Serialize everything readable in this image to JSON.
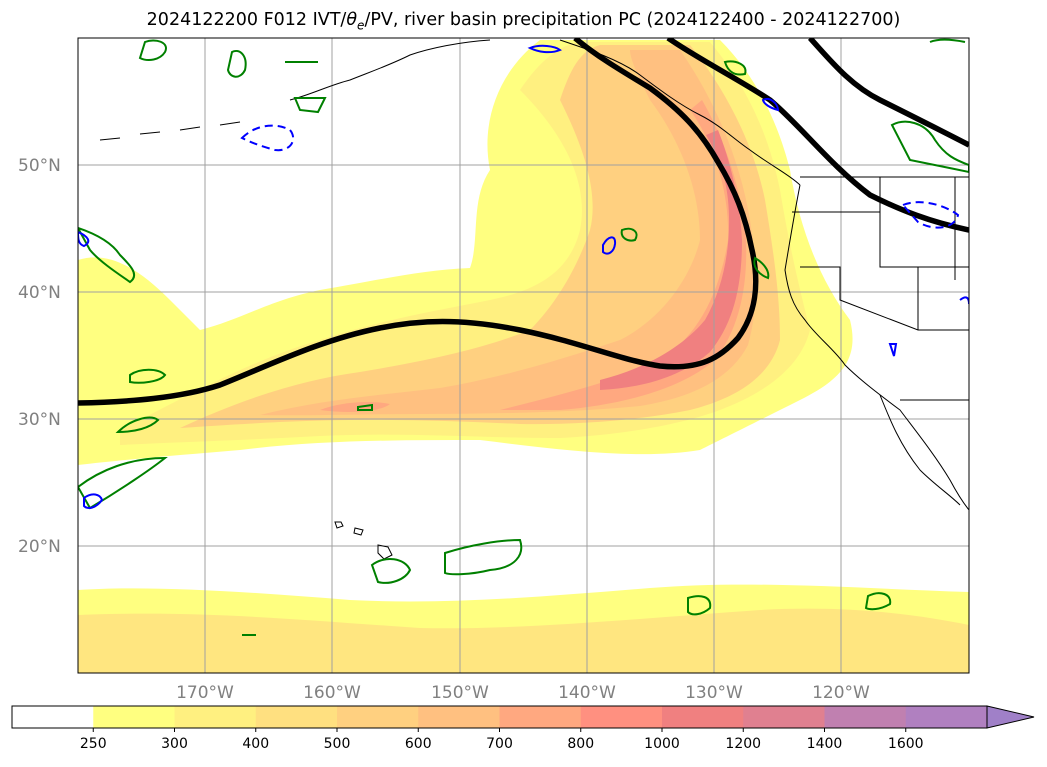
{
  "title": {
    "prefix": "2024122200 F012 IVT/",
    "theta": "θ",
    "theta_sub": "e",
    "suffix": "/PV, river basin precipitation PC (2024122400 - 2024122700)"
  },
  "map": {
    "lat_labels": [
      "50°N",
      "40°N",
      "30°N",
      "20°N"
    ],
    "lon_labels": [
      "170°W",
      "160°W",
      "150°W",
      "140°W",
      "130°W",
      "120°W"
    ]
  },
  "colorbar": {
    "labels": [
      "250",
      "300",
      "400",
      "500",
      "600",
      "700",
      "800",
      "1000",
      "1200",
      "1400",
      "1600"
    ],
    "colors": [
      "#ffffff",
      "#ffff80",
      "#fff080",
      "#ffe080",
      "#ffd080",
      "#ffc080",
      "#ffa880",
      "#ff9080",
      "#f08080",
      "#e08090",
      "#c080b0",
      "#b080c0",
      "#a080c8"
    ]
  },
  "contour_colors": {
    "theta_e": "#000000",
    "pv_positive": "#008000",
    "pv_negative": "#0000ff"
  }
}
